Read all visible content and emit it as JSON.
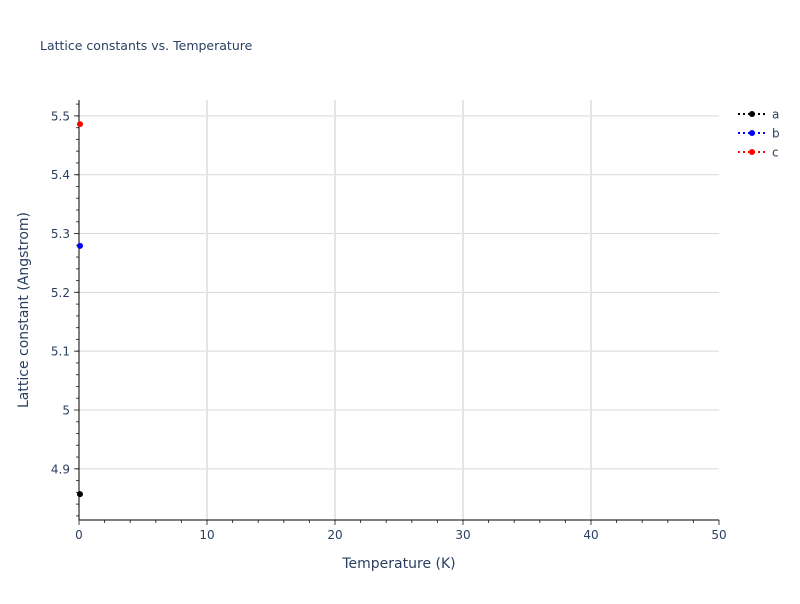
{
  "chart_data": {
    "type": "line",
    "title": "Lattice constants vs. Temperature",
    "xlabel": "Temperature (K)",
    "ylabel": "Lattice constant (Angstrom)",
    "xlim": [
      0,
      50
    ],
    "ylim": [
      4.813,
      5.527
    ],
    "xticks": [
      0,
      10,
      20,
      30,
      40,
      50
    ],
    "xtick_labels": [
      "0",
      "10",
      "20",
      "30",
      "40",
      "50"
    ],
    "yticks": [
      4.9,
      5.0,
      5.1,
      5.2,
      5.3,
      5.4,
      5.5
    ],
    "ytick_labels": [
      "4.9",
      "5",
      "5.1",
      "5.2",
      "5.3",
      "5.4",
      "5.5"
    ],
    "grid": true,
    "legend_placement": "top-right",
    "line_style": "dotted with markers",
    "series": [
      {
        "name": "a",
        "color": "#000000",
        "x": [
          0
        ],
        "y": [
          4.857
        ]
      },
      {
        "name": "b",
        "color": "#0000ff",
        "x": [
          0
        ],
        "y": [
          5.279
        ]
      },
      {
        "name": "c",
        "color": "#ff0000",
        "x": [
          0
        ],
        "y": [
          5.486
        ]
      }
    ]
  }
}
